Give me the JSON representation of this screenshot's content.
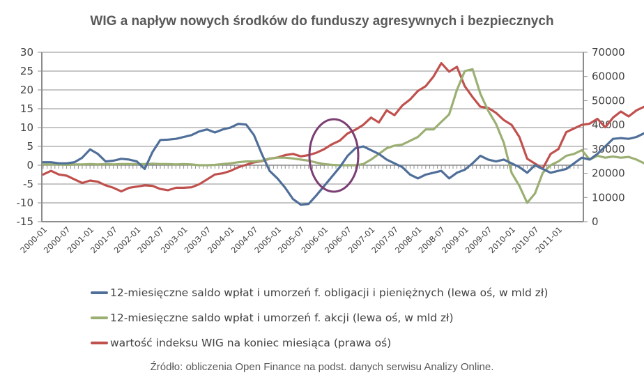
{
  "title": "WIG a napływ nowych środków do funduszy agresywnych i bezpiecznych",
  "source": "Źródło: obliczenia Open Finance na podst. danych serwisu Analizy Online.",
  "chart_data": {
    "type": "line",
    "title": "WIG a napływ nowych środków do funduszy agresywnych i bezpiecznych",
    "left_axis": {
      "ticks": [
        "30",
        "25",
        "20",
        "15",
        "10",
        "5",
        "0",
        "-5",
        "-10",
        "-15"
      ],
      "range": [
        -15,
        30
      ]
    },
    "right_axis": {
      "ticks": [
        "70000",
        "60000",
        "50000",
        "40000",
        "30000",
        "20000",
        "10000",
        "0"
      ],
      "range": [
        0,
        70000
      ]
    },
    "x_tick_labels": [
      "2000-01",
      "2000-07",
      "2001-01",
      "2001-07",
      "2002-01",
      "2002-07",
      "2003-01",
      "2003-07",
      "2004-01",
      "2004-07",
      "2005-01",
      "2005-07",
      "2006-01",
      "2006-07",
      "2007-01",
      "2007-07",
      "2008-01",
      "2008-07",
      "2009-01",
      "2009-07",
      "2010-01",
      "2010-07",
      "2011-01"
    ],
    "x_start": "2000-01",
    "x_step_months": 2,
    "grid": true,
    "legend_position": "bottom",
    "series": [
      {
        "name": "12-miesięczne saldo wpłat i umorzeń f. obligacji i pieniężnych (lewa oś, w mld zł)",
        "axis": "left",
        "color": "#4F6F99",
        "values": [
          0.8,
          0.8,
          0.5,
          0.5,
          0.8,
          2.0,
          4.2,
          3.0,
          1.0,
          1.2,
          1.7,
          1.5,
          1.0,
          -1.0,
          3.5,
          6.7,
          6.8,
          7.0,
          7.5,
          8.0,
          9.0,
          9.5,
          8.7,
          9.5,
          10.0,
          11.0,
          10.8,
          8.0,
          3.0,
          -1.5,
          -3.5,
          -6.0,
          -9.0,
          -10.5,
          -10.3,
          -8.0,
          -5.5,
          -3.0,
          -0.5,
          2.5,
          4.5,
          5.0,
          4.0,
          3.0,
          1.5,
          0.5,
          -0.5,
          -2.5,
          -3.5,
          -2.5,
          -2.0,
          -1.5,
          -3.5,
          -2.0,
          -1.2,
          0.5,
          2.5,
          1.5,
          1.0,
          1.5,
          0.5,
          -0.5,
          -2.0,
          0.0,
          -1.0,
          -2.0,
          -1.5,
          -1.0,
          0.5,
          2.0,
          1.5,
          3.0,
          5.0,
          7.0,
          7.2,
          7.0,
          7.5,
          8.5,
          8.0,
          5.5,
          3.5
        ],
        "values_note": "left-axis values, every 2 months from 2000-01"
      },
      {
        "name": "12-miesięczne saldo wpłat i umorzeń f. akcji (lewa oś, w mld zł)",
        "axis": "left",
        "color": "#9BAF73",
        "values": [
          0.2,
          0.2,
          0.2,
          0.1,
          0.2,
          0.2,
          0.3,
          0.2,
          0.3,
          0.2,
          0.3,
          0.3,
          0.3,
          0.3,
          0.4,
          0.3,
          0.3,
          0.2,
          0.3,
          0.2,
          0.0,
          0.0,
          0.1,
          0.3,
          0.5,
          0.8,
          1.0,
          1.0,
          1.2,
          1.8,
          2.0,
          2.0,
          1.8,
          1.5,
          1.2,
          0.7,
          0.3,
          0.1,
          0.0,
          0.0,
          0.0,
          0.3,
          1.5,
          3.0,
          4.5,
          5.2,
          5.5,
          6.5,
          7.5,
          9.5,
          9.5,
          11.5,
          13.5,
          20.0,
          25.0,
          25.5,
          19.0,
          14.5,
          11.0,
          6.0,
          -2.0,
          -5.5,
          -10.0,
          -7.5,
          -2.0,
          0.0,
          1.0,
          2.5,
          3.0,
          4.0,
          1.5,
          2.5,
          2.0,
          2.3,
          2.0,
          2.2,
          1.5,
          0.5,
          0.3,
          0.6,
          0.8
        ],
        "values_note": "left-axis values, every 2 months from 2000-01"
      },
      {
        "name": "wartość indeksu WIG na koniec miesiąca (prawa oś)",
        "axis": "right",
        "color": "#C0504D",
        "values": [
          19500,
          21000,
          19500,
          19000,
          17500,
          16000,
          17000,
          16500,
          15000,
          14000,
          12500,
          14000,
          14500,
          15000,
          14800,
          13500,
          13000,
          14000,
          14000,
          14200,
          15500,
          17500,
          19500,
          20000,
          21000,
          22500,
          23500,
          24500,
          25000,
          26000,
          26500,
          27500,
          28000,
          27000,
          27500,
          28500,
          30000,
          32000,
          33500,
          36500,
          38000,
          40000,
          43000,
          41000,
          46000,
          44000,
          48000,
          50500,
          54000,
          56000,
          60000,
          65500,
          62000,
          64000,
          56000,
          51500,
          47500,
          47000,
          45000,
          42000,
          40000,
          35000,
          26000,
          24000,
          22000,
          28000,
          30000,
          37000,
          38500,
          40000,
          40500,
          42500,
          39000,
          43000,
          45500,
          43500,
          46000,
          47500,
          48500,
          50000,
          51000
        ],
        "values_note": "right-axis values, every 2 months from 2000-01"
      }
    ],
    "annotations": [
      {
        "type": "ellipse",
        "color": "#7B3F73",
        "around": "2006-01",
        "description": "purple ellipse highlighting crossover of series ~2005-09 to 2006-05"
      }
    ]
  },
  "legend": [
    {
      "label": "12-miesięczne saldo wpłat i umorzeń f. obligacji i pieniężnych (lewa oś, w mld zł)",
      "color": "#4F6F99"
    },
    {
      "label": "12-miesięczne saldo wpłat i umorzeń f. akcji (lewa oś, w mld zł)",
      "color": "#9BAF73"
    },
    {
      "label": "wartość indeksu WIG na koniec miesiąca (prawa oś)",
      "color": "#C0504D"
    }
  ]
}
